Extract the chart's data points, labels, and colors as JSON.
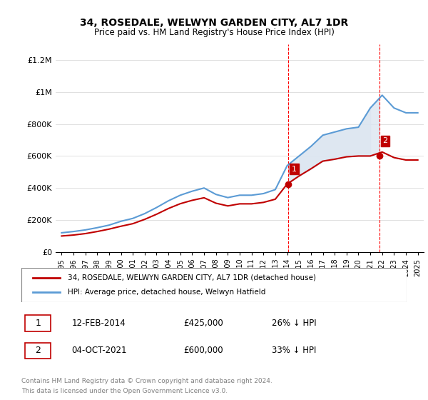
{
  "title": "34, ROSEDALE, WELWYN GARDEN CITY, AL7 1DR",
  "subtitle": "Price paid vs. HM Land Registry's House Price Index (HPI)",
  "hpi_label": "HPI: Average price, detached house, Welwyn Hatfield",
  "price_label": "34, ROSEDALE, WELWYN GARDEN CITY, AL7 1DR (detached house)",
  "sale1_date": "12-FEB-2014",
  "sale1_price": 425000,
  "sale1_hpi_diff": "26% ↓ HPI",
  "sale2_date": "04-OCT-2021",
  "sale2_price": 600000,
  "sale2_hpi_diff": "33% ↓ HPI",
  "footnote1": "Contains HM Land Registry data © Crown copyright and database right 2024.",
  "footnote2": "This data is licensed under the Open Government Licence v3.0.",
  "hpi_color": "#5b9bd5",
  "price_color": "#c00000",
  "sale_marker_color": "#c00000",
  "shaded_color": "#dce6f1",
  "sale1_vline_color": "#ff0000",
  "sale2_vline_color": "#ff0000",
  "ylim": [
    0,
    1300000
  ],
  "xlim_start": 1994.5,
  "xlim_end": 2025.5,
  "hpi_years": [
    1995,
    1996,
    1997,
    1998,
    1999,
    2000,
    2001,
    2002,
    2003,
    2004,
    2005,
    2006,
    2007,
    2008,
    2009,
    2010,
    2011,
    2012,
    2013,
    2014,
    2015,
    2016,
    2017,
    2018,
    2019,
    2020,
    2021,
    2022,
    2023,
    2024,
    2025
  ],
  "hpi_values": [
    120000,
    128000,
    138000,
    152000,
    168000,
    192000,
    210000,
    240000,
    278000,
    320000,
    355000,
    380000,
    400000,
    360000,
    340000,
    355000,
    355000,
    365000,
    390000,
    540000,
    600000,
    660000,
    730000,
    750000,
    770000,
    780000,
    900000,
    980000,
    900000,
    870000,
    870000
  ],
  "price_years": [
    1995,
    1996,
    1997,
    1998,
    1999,
    2000,
    2001,
    2002,
    2003,
    2004,
    2005,
    2006,
    2007,
    2008,
    2009,
    2010,
    2011,
    2012,
    2013,
    2014,
    2015,
    2016,
    2017,
    2018,
    2019,
    2020,
    2021,
    2022,
    2023,
    2024,
    2025
  ],
  "price_values": [
    100000,
    106000,
    115000,
    128000,
    143000,
    161000,
    177000,
    204000,
    236000,
    272000,
    302000,
    323000,
    339000,
    305000,
    288000,
    301000,
    301000,
    310000,
    330000,
    425000,
    475000,
    520000,
    568000,
    580000,
    595000,
    600000,
    600000,
    625000,
    590000,
    575000,
    575000
  ],
  "sale1_x": 2014.1,
  "sale1_y": 425000,
  "sale2_x": 2021.75,
  "sale2_y": 600000,
  "yticks": [
    0,
    200000,
    400000,
    600000,
    800000,
    1000000,
    1200000
  ],
  "ytick_labels": [
    "£0",
    "£200K",
    "£400K",
    "£600K",
    "£800K",
    "£1M",
    "£1.2M"
  ],
  "xticks": [
    1995,
    1996,
    1997,
    1998,
    1999,
    2000,
    2001,
    2002,
    2003,
    2004,
    2005,
    2006,
    2007,
    2008,
    2009,
    2010,
    2011,
    2012,
    2013,
    2014,
    2015,
    2016,
    2017,
    2018,
    2019,
    2020,
    2021,
    2022,
    2023,
    2024,
    2025
  ]
}
